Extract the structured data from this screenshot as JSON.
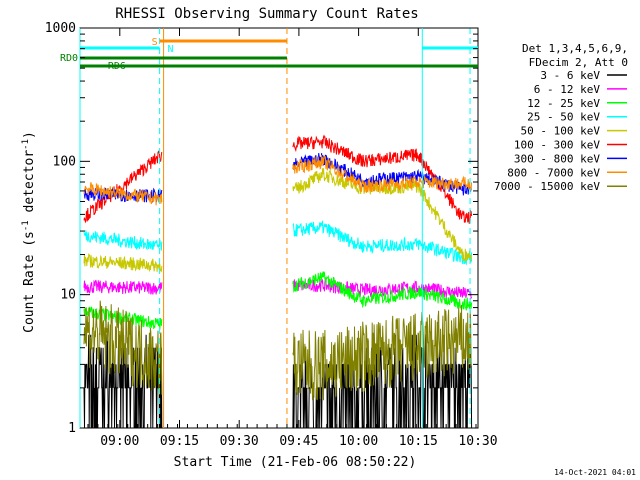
{
  "chart_data": {
    "type": "line",
    "title": "RHESSI Observing Summary Count Rates",
    "xlabel": "Start Time (21-Feb-06 08:50:22)",
    "ylabel_main": "Count Rate (s",
    "ylabel_sup1": "-1",
    "ylabel_mid": " detector",
    "ylabel_sup2": "-1",
    "ylabel_end": ")",
    "y_scale": "log",
    "xlim_min": [
      0,
      100
    ],
    "ylim": [
      1,
      1000
    ],
    "x_ticks": [
      {
        "min": 10,
        "label": "09:00"
      },
      {
        "min": 25,
        "label": "09:15"
      },
      {
        "min": 40,
        "label": "09:30"
      },
      {
        "min": 55,
        "label": "09:45"
      },
      {
        "min": 70,
        "label": "10:00"
      },
      {
        "min": 85,
        "label": "10:15"
      },
      {
        "min": 100,
        "label": "10:30"
      }
    ],
    "y_ticks": [
      {
        "value": 1,
        "label": "1"
      },
      {
        "value": 10,
        "label": "10"
      },
      {
        "value": 100,
        "label": "100"
      },
      {
        "value": 1000,
        "label": "1000"
      }
    ],
    "legend_header": [
      "Det 1,3,4,5,6,9,",
      "FDecim 2, Att 0"
    ],
    "series": [
      {
        "name": "3 - 6 keV",
        "color": "#000000",
        "values": [
          [
            1,
            2.2
          ],
          [
            20,
            2.1
          ],
          [
            61,
            1.6
          ],
          [
            71,
            1.7
          ],
          [
            85,
            2.4
          ],
          [
            96,
            2.0
          ]
        ]
      },
      {
        "name": "6 - 12 keV",
        "color": "#ff00ff",
        "values": [
          [
            1,
            11.5
          ],
          [
            20,
            11.2
          ],
          [
            61,
            11.8
          ],
          [
            71,
            10.8
          ],
          [
            85,
            11.3
          ],
          [
            96,
            10.2
          ]
        ]
      },
      {
        "name": "12 - 25 keV",
        "color": "#00ff00",
        "values": [
          [
            1,
            7.5
          ],
          [
            20,
            6.0
          ],
          [
            61,
            13.5
          ],
          [
            71,
            9.0
          ],
          [
            85,
            10.5
          ],
          [
            96,
            8.5
          ]
        ]
      },
      {
        "name": "25 - 50 keV",
        "color": "#00ffff",
        "values": [
          [
            1,
            28.0
          ],
          [
            20,
            23.0
          ],
          [
            61,
            32.0
          ],
          [
            71,
            23.0
          ],
          [
            85,
            24.0
          ],
          [
            96,
            19.0
          ]
        ]
      },
      {
        "name": "50 - 100 keV",
        "color": "#c8c800",
        "values": [
          [
            1,
            18.0
          ],
          [
            20,
            16.5
          ],
          [
            61,
            80.0
          ],
          [
            71,
            62.0
          ],
          [
            85,
            65.0
          ],
          [
            96,
            20.0
          ]
        ]
      },
      {
        "name": "100 - 300 keV",
        "color": "#ff0000",
        "values": [
          [
            1,
            38.0
          ],
          [
            20,
            110.0
          ],
          [
            61,
            140.0
          ],
          [
            71,
            100.0
          ],
          [
            85,
            112.0
          ],
          [
            96,
            38.0
          ]
        ]
      },
      {
        "name": "300 - 800 keV",
        "color": "#0000ff",
        "values": [
          [
            1,
            57.0
          ],
          [
            20,
            55.0
          ],
          [
            61,
            105.0
          ],
          [
            71,
            72.0
          ],
          [
            85,
            77.0
          ],
          [
            96,
            62.0
          ]
        ]
      },
      {
        "name": "800 - 7000 keV",
        "color": "#ff8c00",
        "values": [
          [
            1,
            63.0
          ],
          [
            20,
            52.0
          ],
          [
            61,
            100.0
          ],
          [
            71,
            65.0
          ],
          [
            85,
            70.0
          ],
          [
            96,
            68.0
          ]
        ]
      },
      {
        "name": "7000 - 15000 keV",
        "color": "#808000",
        "values": [
          [
            1,
            5.5
          ],
          [
            20,
            3.2
          ],
          [
            61,
            2.9
          ],
          [
            71,
            3.4
          ],
          [
            85,
            4.0
          ],
          [
            96,
            4.5
          ]
        ]
      }
    ],
    "flag_bars": [
      {
        "label": "S",
        "color": "#ff8c00",
        "x_from": 20,
        "x_to": 52
      },
      {
        "label": "N",
        "color": "#00ffff",
        "x_from": 0,
        "x_to": 20
      },
      {
        "label": "N",
        "color": "#00ffff",
        "x_from": 86,
        "x_to": 100
      },
      {
        "label": "RD0",
        "color": "#008000",
        "x_from": 0,
        "x_to": 52
      },
      {
        "label": "RD6",
        "color": "#008000",
        "x_from": 0,
        "x_to": 100
      }
    ],
    "vertical_markers": [
      {
        "style": "solid",
        "color": "#00ffff",
        "x": 0
      },
      {
        "style": "dashed",
        "color": "#00ffff",
        "x": 20
      },
      {
        "style": "solid",
        "color": "#ff8c00",
        "x": 21
      },
      {
        "style": "dashed",
        "color": "#ff8c00",
        "x": 52
      },
      {
        "style": "solid",
        "color": "#00ffff",
        "x": 86
      },
      {
        "style": "dashed",
        "color": "#00ffff",
        "x": 98
      }
    ],
    "data_gap": [
      21,
      52
    ],
    "grid": false
  },
  "footer_timestamp": "14-Oct-2021 04:01"
}
